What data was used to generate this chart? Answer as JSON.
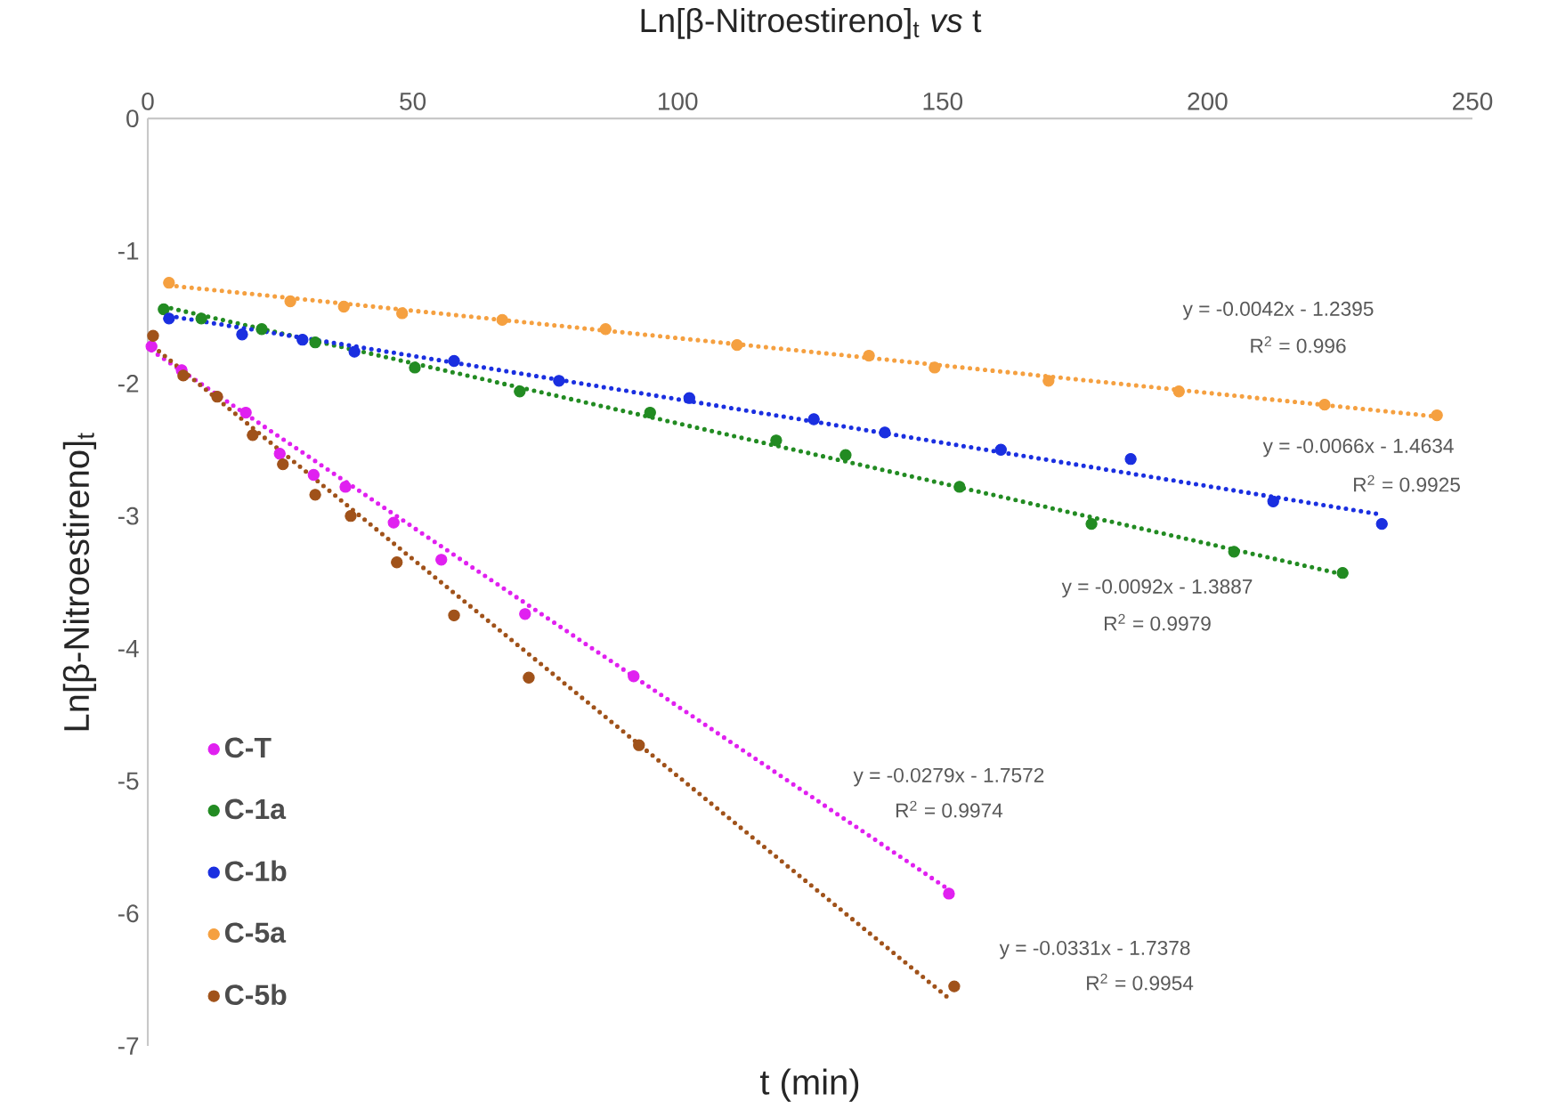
{
  "chart_data": {
    "type": "scatter",
    "title": "Ln[β-Nitroestireno]$_{t}$ *vs* t",
    "xlabel": "t (min)",
    "ylabel": "Ln[β-Nitroestireno]$_{t}$",
    "xlim": [
      0,
      250
    ],
    "ylim": [
      -7,
      0
    ],
    "xticks": [
      0,
      50,
      100,
      150,
      200,
      250
    ],
    "yticks": [
      -7,
      -6,
      -5,
      -4,
      -3,
      -2,
      -1,
      0
    ],
    "marker": "circle",
    "legend": "bottom left",
    "series": [
      {
        "name": "C-T",
        "color": "#e020f0",
        "x": [
          0.7,
          6.4,
          13.1,
          18.5,
          24.9,
          31.3,
          37.3,
          46.4,
          55.4,
          71.2,
          91.7,
          151.2
        ],
        "values": [
          -1.72,
          -1.9,
          null,
          -2.22,
          -2.53,
          -2.69,
          -2.78,
          -3.05,
          -3.33,
          -3.74,
          -4.21,
          -5.85
        ]
      },
      {
        "name": "C-1a",
        "color": "#228b22",
        "x": [
          3.0,
          10.1,
          21.5,
          31.6,
          50.4,
          70.2,
          94.8,
          118.6,
          131.7,
          153.2,
          178.1,
          205.0,
          225.5
        ],
        "values": [
          -1.44,
          -1.51,
          -1.59,
          -1.69,
          -1.88,
          -2.06,
          -2.22,
          -2.43,
          -2.54,
          -2.78,
          -3.06,
          -3.27,
          -3.43
        ]
      },
      {
        "name": "C-1b",
        "color": "#1a2fe0",
        "x": [
          4.0,
          17.8,
          29.2,
          39.0,
          57.8,
          77.6,
          102.2,
          125.7,
          139.1,
          161.0,
          185.5,
          212.4,
          232.9
        ],
        "values": [
          -1.51,
          -1.63,
          -1.67,
          -1.76,
          -1.83,
          -1.98,
          -2.11,
          -2.27,
          -2.37,
          -2.5,
          -2.57,
          -2.89,
          -3.06
        ]
      },
      {
        "name": "C-5a",
        "color": "#f5a040",
        "x": [
          4.0,
          26.9,
          37.0,
          48.0,
          66.9,
          86.4,
          111.2,
          136.1,
          148.5,
          170.0,
          194.6,
          222.1,
          243.3
        ],
        "values": [
          -1.24,
          -1.38,
          -1.42,
          -1.47,
          -1.52,
          -1.59,
          -1.71,
          -1.79,
          -1.88,
          -1.98,
          -2.06,
          -2.16,
          -2.24
        ]
      },
      {
        "name": "C-5b",
        "color": "#a0521a",
        "x": [
          1.0,
          6.7,
          13.1,
          19.8,
          25.5,
          31.6,
          38.3,
          47.0,
          57.8,
          71.9,
          92.7,
          152.2
        ],
        "values": [
          -1.64,
          -1.94,
          -2.1,
          -2.39,
          -2.61,
          -2.84,
          -3.0,
          -3.35,
          -3.75,
          -4.22,
          -4.73,
          -6.55
        ]
      },
      {
        "type": "line",
        "line_style": "dotted",
        "marker": "none",
        "color": "#e020f0",
        "x": [
          0.7,
          151.2
        ],
        "values": [
          -1.75,
          -5.82
        ]
      },
      {
        "type": "line",
        "line_style": "dotted",
        "marker": "none",
        "color": "#228b22",
        "x": [
          3.0,
          225.5
        ],
        "values": [
          -1.42,
          -3.44
        ]
      },
      {
        "type": "line",
        "line_style": "dotted",
        "marker": "none",
        "color": "#1a2fe0",
        "x": [
          4.0,
          232.9
        ],
        "values": [
          -1.49,
          -2.99
        ]
      },
      {
        "type": "line",
        "line_style": "dotted",
        "marker": "none",
        "color": "#f5a040",
        "x": [
          4.0,
          243.3
        ],
        "values": [
          -1.26,
          -2.25
        ]
      },
      {
        "type": "line",
        "line_style": "dotted",
        "marker": "none",
        "color": "#a0521a",
        "x": [
          1.0,
          151.2
        ],
        "values": [
          -1.72,
          -6.64
        ]
      }
    ],
    "annotations": [
      "y = -0.0042x - 1.2395",
      "R$^{2}$ = 0.996",
      "y = -0.0066x - 1.4634",
      "R$^{2}$ = 0.9925",
      "y = -0.0092x - 1.3887",
      "R$^{2}$ = 0.9979",
      "y = -0.0279x - 1.7572",
      "R$^{2}$ = 0.9974",
      "y = -0.0331x - 1.7378",
      "R$^{2}$ = 0.9954"
    ]
  }
}
